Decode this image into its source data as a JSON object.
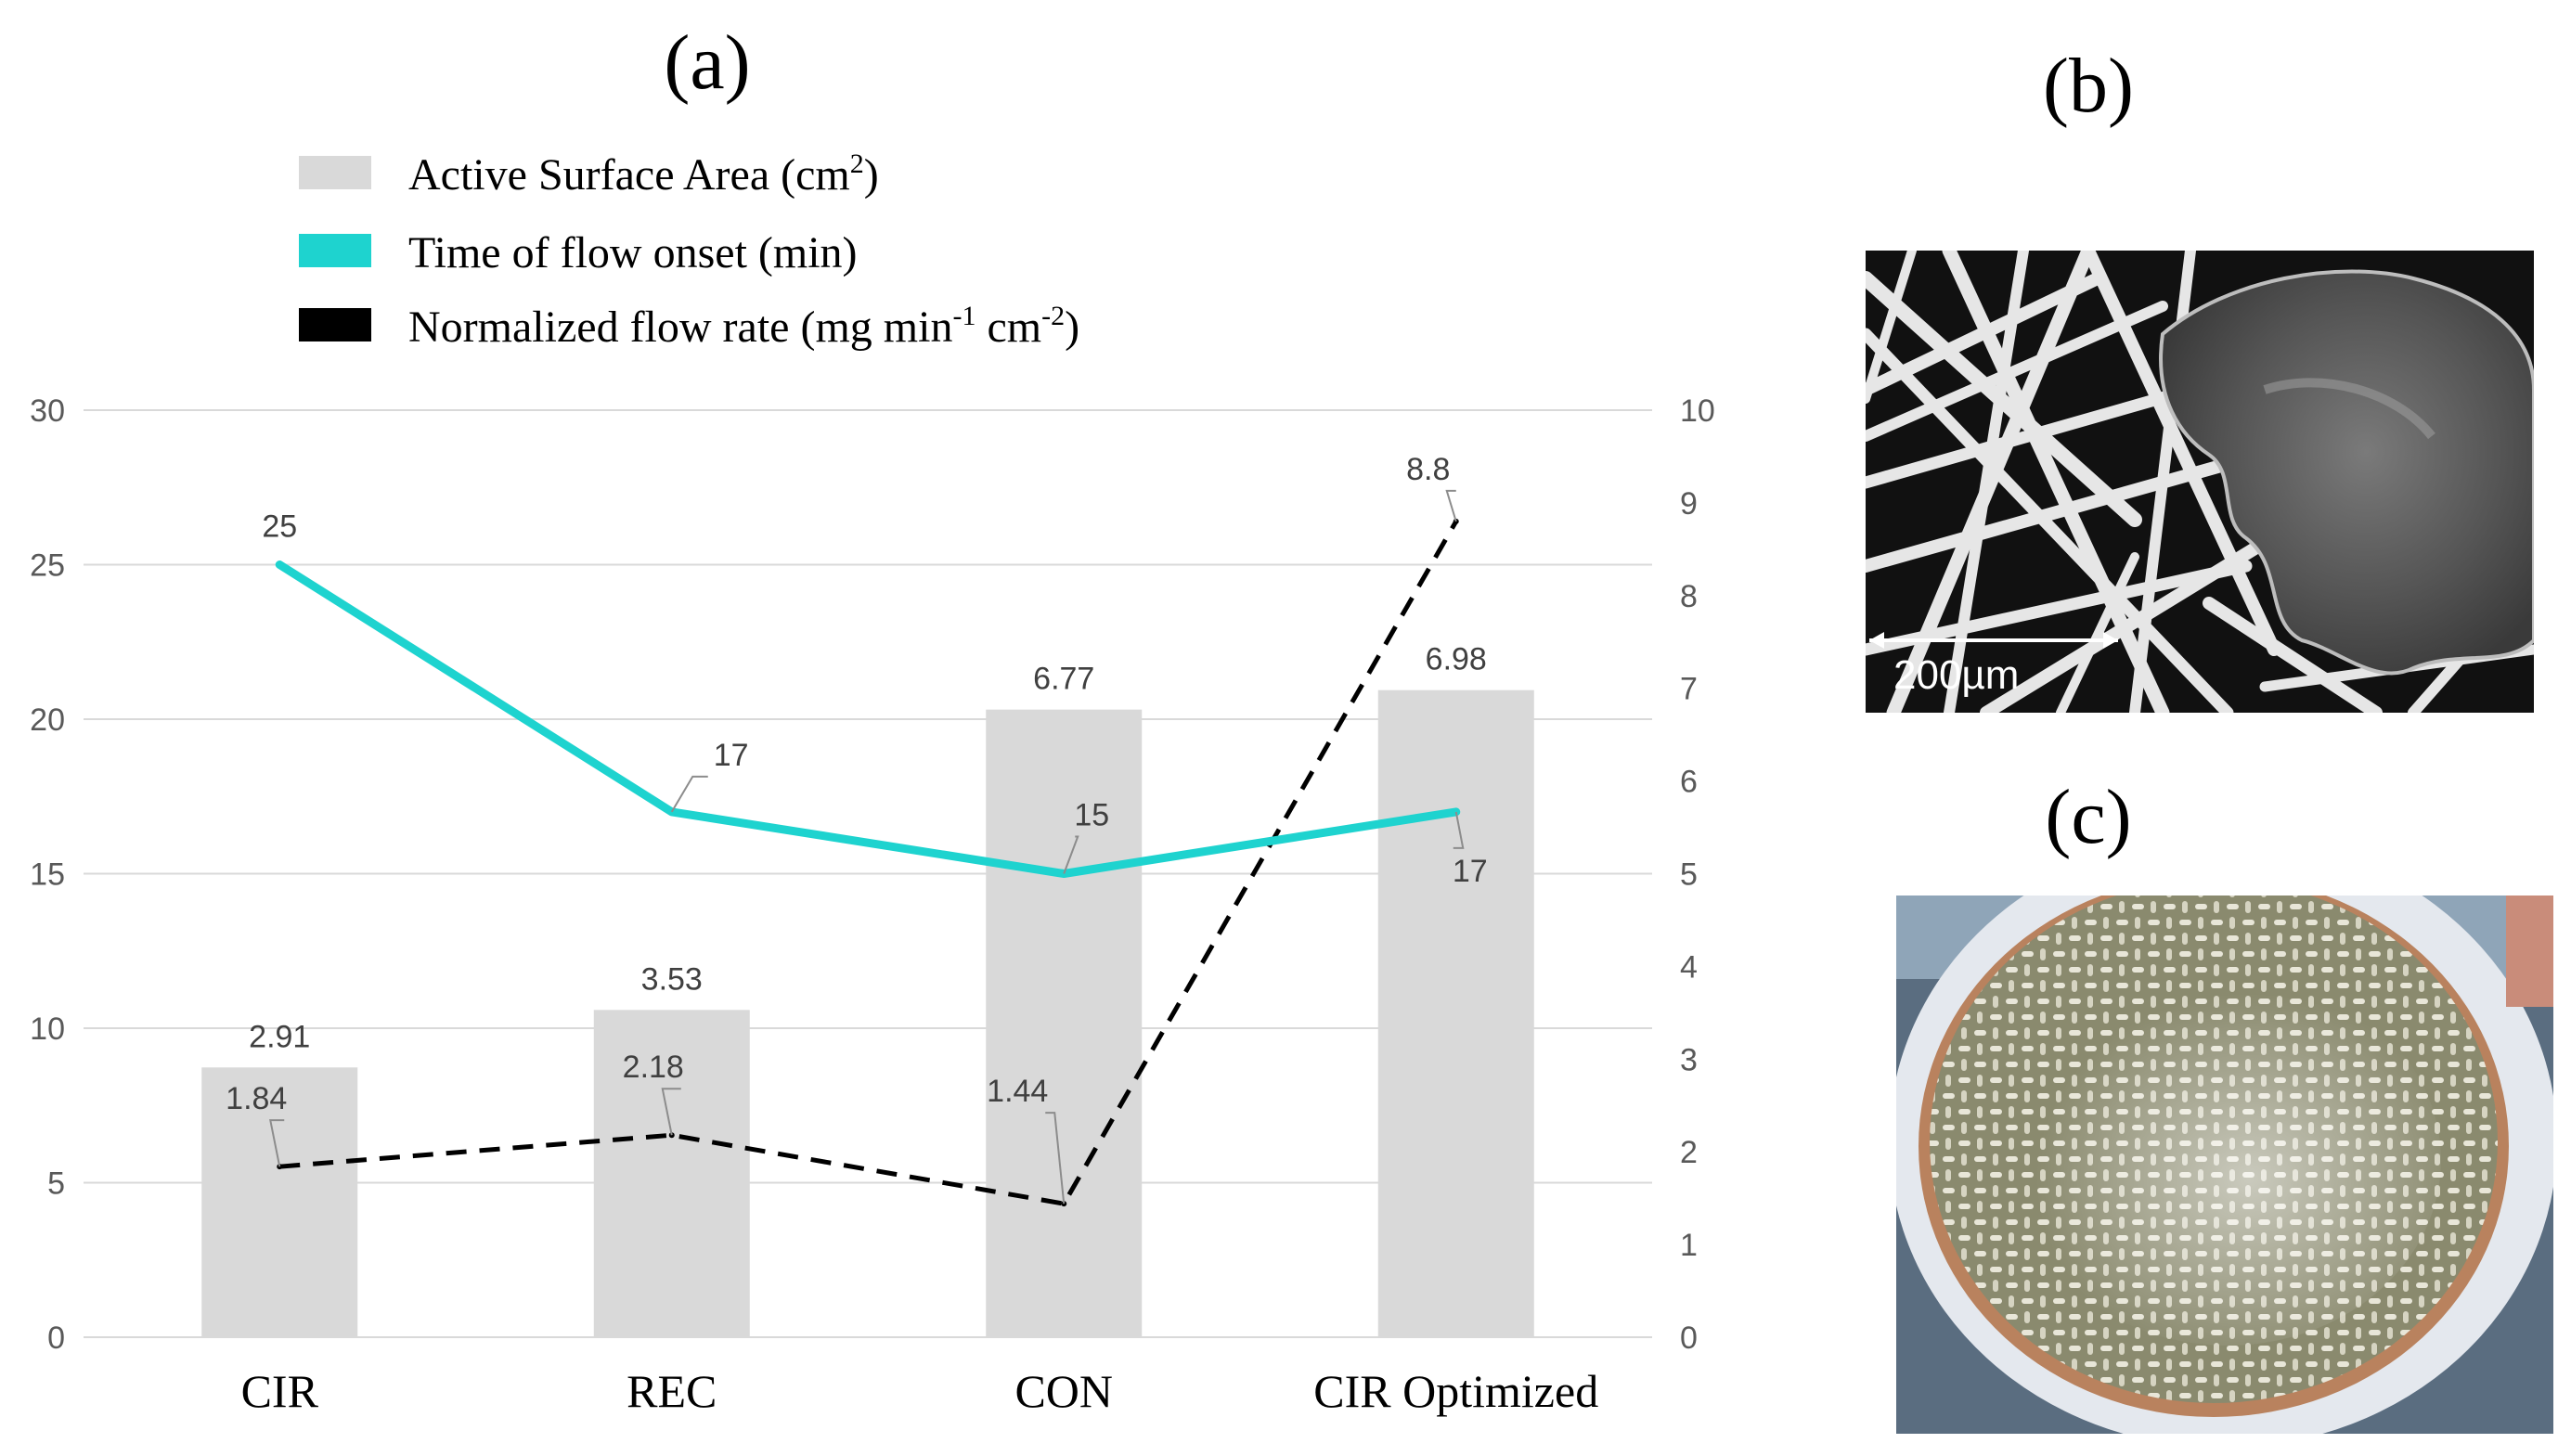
{
  "panels": {
    "a": "(a)",
    "b": "(b)",
    "c": "(c)"
  },
  "sem_image": {
    "scale_label": "200µm"
  },
  "colors": {
    "bar": "#d9d9d9",
    "time_line": "#1ed3cf",
    "flow_line": "#000000",
    "grid": "#d9d9d9"
  },
  "chart_data": {
    "type": "bar",
    "title": "",
    "categories": [
      "CIR",
      "REC",
      "CON",
      "CIR Optimized"
    ],
    "y_left_lim": [
      0,
      30
    ],
    "y_left_ticks": [
      "0",
      "5",
      "10",
      "15",
      "20",
      "25",
      "30"
    ],
    "y_right_lim": [
      0,
      10
    ],
    "y_right_ticks": [
      "0",
      "1",
      "2",
      "3",
      "4",
      "5",
      "6",
      "7",
      "8",
      "9",
      "10"
    ],
    "legend": {
      "bar": "Active Surface Area (cm2)",
      "time": "Time of flow onset (min)",
      "flow": "Normalized flow rate (mg min-1 cm-2)"
    },
    "series": [
      {
        "name": "Active Surface Area (cm2)",
        "kind": "bar",
        "axis": "right",
        "values": [
          2.91,
          3.53,
          6.77,
          6.98
        ],
        "labels": [
          "2.91",
          "3.53",
          "6.77",
          "6.98"
        ]
      },
      {
        "name": "Time of flow onset (min)",
        "kind": "line",
        "axis": "left",
        "values": [
          25,
          17,
          15,
          17
        ],
        "labels": [
          "25",
          "17",
          "15",
          "17"
        ]
      },
      {
        "name": "Normalized flow rate (mg min-1 cm-2)",
        "kind": "dashed-line",
        "axis": "right",
        "values": [
          1.84,
          2.18,
          1.44,
          8.8
        ],
        "labels": [
          "1.84",
          "2.18",
          "1.44",
          "8.8"
        ]
      }
    ]
  }
}
